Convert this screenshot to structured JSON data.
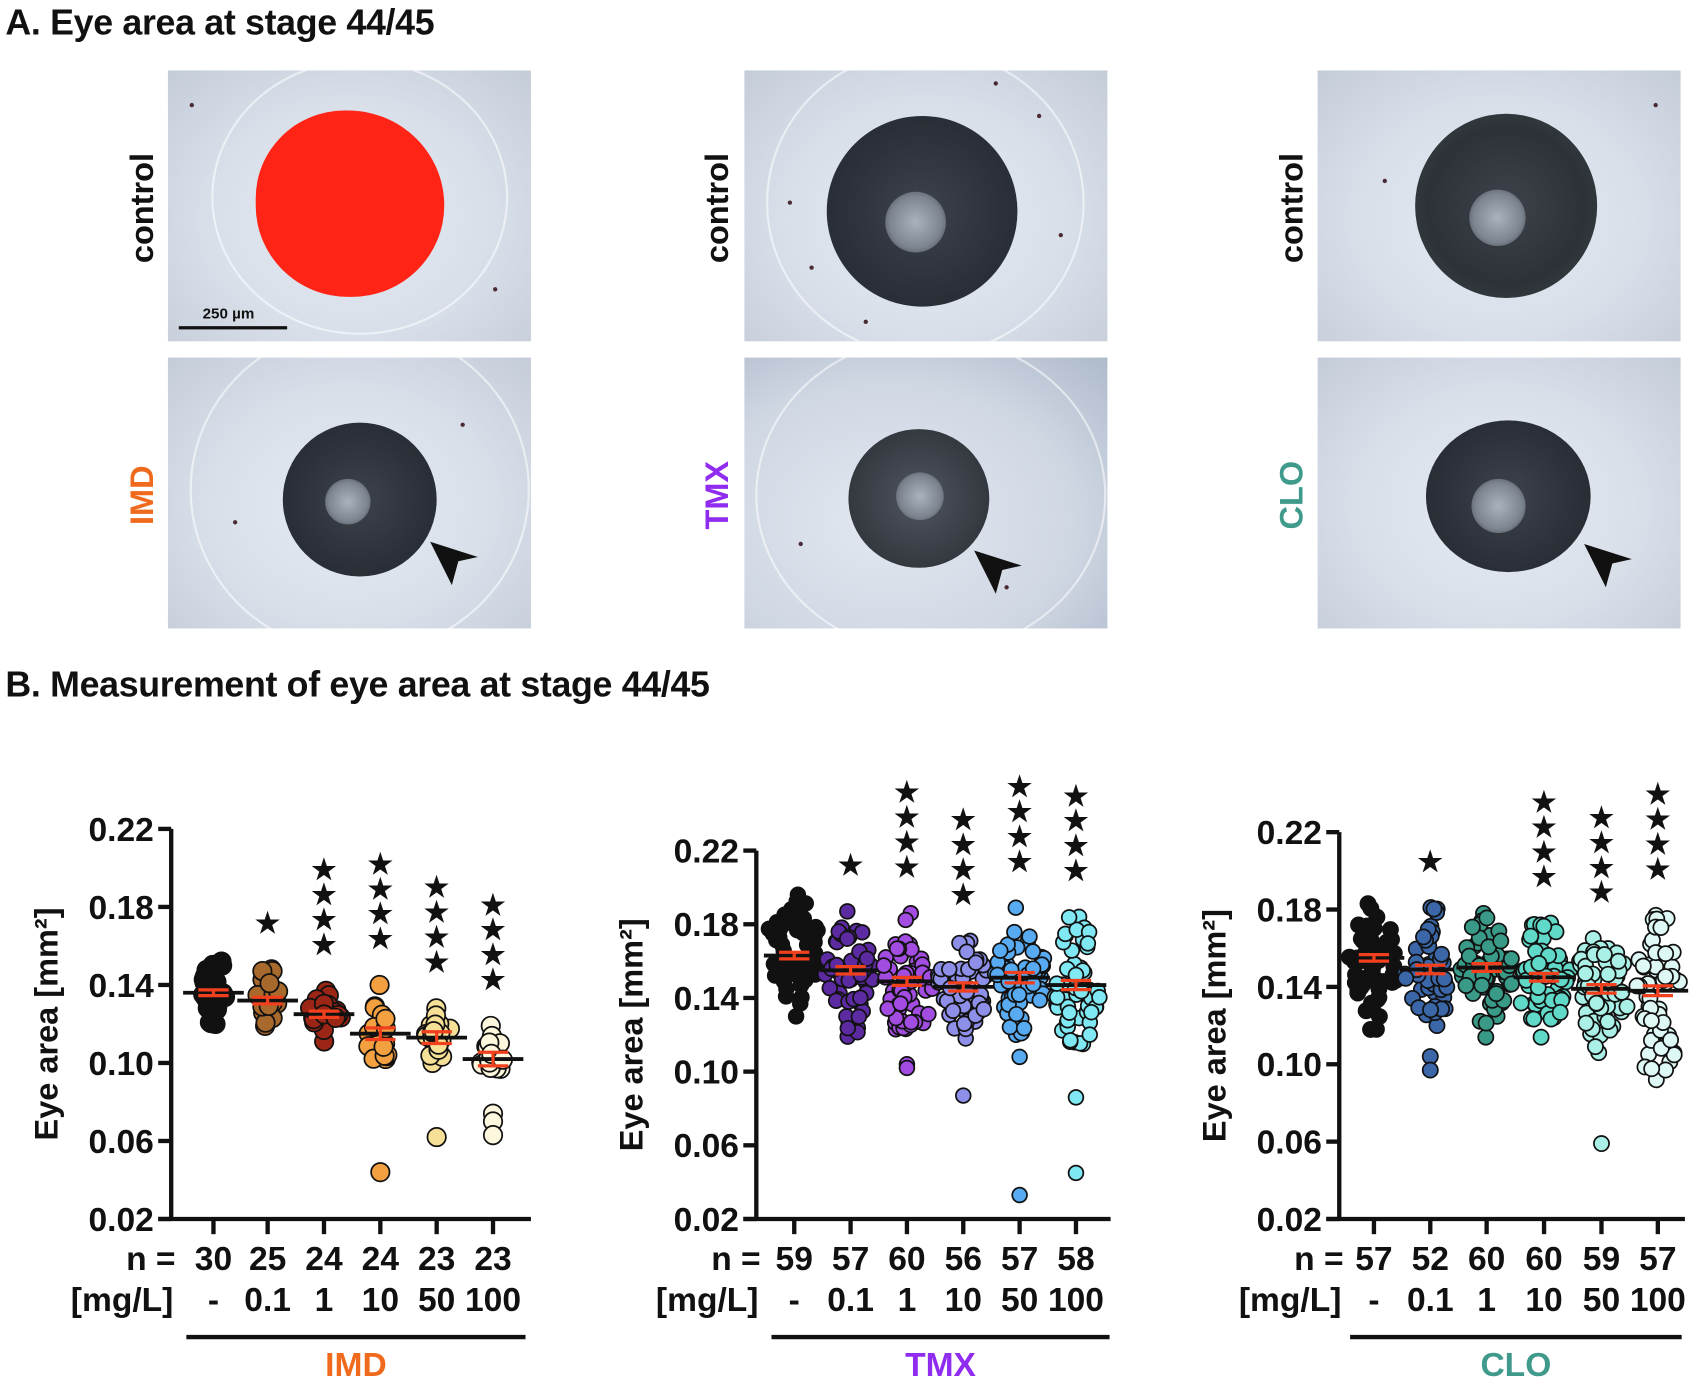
{
  "panel_a": {
    "title": "A. Eye area at stage 44/45",
    "scale_bar_label": "250 µm",
    "columns": [
      {
        "control_label": "control",
        "treatment_label": "IMD",
        "treatment_color": "#f06a1e"
      },
      {
        "control_label": "control",
        "treatment_label": "TMX",
        "treatment_color": "#8f2cf0"
      },
      {
        "control_label": "control",
        "treatment_label": "CLO",
        "treatment_color": "#3f9a8c"
      }
    ],
    "overlay_color": "#ff2416",
    "icons": [
      "arrowhead-icon"
    ]
  },
  "panel_b": {
    "title": "B. Measurement of eye area at stage 44/45"
  },
  "chart_data": [
    {
      "type": "scatter",
      "group_label": "IMD",
      "group_color": "#f06a1e",
      "ylabel": "Eye area [mm²]",
      "ylim": [
        0.02,
        0.22
      ],
      "yticks": [
        "0.02",
        "0.06",
        "0.10",
        "0.14",
        "0.18",
        "0.22"
      ],
      "n_label": "n =",
      "conc_label": "[mg/L]",
      "categories": [
        "-",
        "0.1",
        "1",
        "10",
        "50",
        "100"
      ],
      "n": [
        30,
        25,
        24,
        24,
        23,
        23
      ],
      "series": [
        {
          "color": "#111111",
          "mean": 0.136,
          "sem": 0.0015,
          "range": [
            0.12,
            0.152
          ],
          "outliers": [],
          "stars": 0
        },
        {
          "color": "#a8692c",
          "mean": 0.132,
          "sem": 0.0017,
          "range": [
            0.119,
            0.148
          ],
          "outliers": [],
          "stars": 1
        },
        {
          "color": "#9c2616",
          "mean": 0.125,
          "sem": 0.0016,
          "range": [
            0.111,
            0.137
          ],
          "outliers": [],
          "stars": 4
        },
        {
          "color": "#f2a040",
          "mean": 0.115,
          "sem": 0.003,
          "range": [
            0.102,
            0.14
          ],
          "outliers": [
            0.044
          ],
          "stars": 4
        },
        {
          "color": "#f6df96",
          "mean": 0.113,
          "sem": 0.003,
          "range": [
            0.1,
            0.128
          ],
          "outliers": [
            0.062
          ],
          "stars": 4
        },
        {
          "color": "#fdf7de",
          "mean": 0.102,
          "sem": 0.0035,
          "range": [
            0.097,
            0.119
          ],
          "outliers": [
            0.074,
            0.07,
            0.063
          ],
          "stars": 4
        }
      ]
    },
    {
      "type": "scatter",
      "group_label": "TMX",
      "group_color": "#8f2cf0",
      "ylabel": "Eye area [mm²]",
      "ylim": [
        0.02,
        0.22
      ],
      "yticks": [
        "0.02",
        "0.06",
        "0.10",
        "0.14",
        "0.18",
        "0.22"
      ],
      "n_label": "n =",
      "conc_label": "[mg/L]",
      "categories": [
        "-",
        "0.1",
        "1",
        "10",
        "50",
        "100"
      ],
      "n": [
        59,
        57,
        60,
        56,
        57,
        58
      ],
      "series": [
        {
          "color": "#111111",
          "mean": 0.163,
          "sem": 0.0018,
          "range": [
            0.13,
            0.196
          ],
          "outliers": [],
          "stars": 0
        },
        {
          "color": "#5c2ba2",
          "mean": 0.155,
          "sem": 0.002,
          "range": [
            0.119,
            0.187
          ],
          "outliers": [],
          "stars": 1
        },
        {
          "color": "#a24ce2",
          "mean": 0.149,
          "sem": 0.0022,
          "range": [
            0.123,
            0.186
          ],
          "outliers": [
            0.104,
            0.102
          ],
          "stars": 4
        },
        {
          "color": "#8e8fe8",
          "mean": 0.146,
          "sem": 0.0022,
          "range": [
            0.118,
            0.171
          ],
          "outliers": [
            0.087
          ],
          "stars": 4
        },
        {
          "color": "#58abf0",
          "mean": 0.151,
          "sem": 0.0028,
          "range": [
            0.12,
            0.189
          ],
          "outliers": [
            0.108,
            0.033
          ],
          "stars": 4
        },
        {
          "color": "#80e8f2",
          "mean": 0.147,
          "sem": 0.0025,
          "range": [
            0.115,
            0.184
          ],
          "outliers": [
            0.086,
            0.045
          ],
          "stars": 4
        }
      ]
    },
    {
      "type": "scatter",
      "group_label": "CLO",
      "group_color": "#3f9a8c",
      "ylabel": "Eye area [mm²]",
      "ylim": [
        0.02,
        0.22
      ],
      "yticks": [
        "0.02",
        "0.06",
        "0.10",
        "0.14",
        "0.18",
        "0.22"
      ],
      "n_label": "n =",
      "conc_label": "[mg/L]",
      "categories": [
        "-",
        "0.1",
        "1",
        "10",
        "50",
        "100"
      ],
      "n": [
        57,
        52,
        60,
        60,
        59,
        57
      ],
      "series": [
        {
          "color": "#111111",
          "mean": 0.155,
          "sem": 0.0017,
          "range": [
            0.118,
            0.183
          ],
          "outliers": [],
          "stars": 0
        },
        {
          "color": "#3b67a8",
          "mean": 0.149,
          "sem": 0.0022,
          "range": [
            0.12,
            0.181
          ],
          "outliers": [
            0.104,
            0.097
          ],
          "stars": 1
        },
        {
          "color": "#3a9a88",
          "mean": 0.15,
          "sem": 0.002,
          "range": [
            0.114,
            0.178
          ],
          "outliers": [],
          "stars": 0
        },
        {
          "color": "#60d9c8",
          "mean": 0.145,
          "sem": 0.002,
          "range": [
            0.114,
            0.173
          ],
          "outliers": [],
          "stars": 4
        },
        {
          "color": "#aaf0e6",
          "mean": 0.139,
          "sem": 0.0022,
          "range": [
            0.106,
            0.165
          ],
          "outliers": [
            0.059
          ],
          "stars": 4
        },
        {
          "color": "#def8f6",
          "mean": 0.138,
          "sem": 0.0025,
          "range": [
            0.092,
            0.177
          ],
          "outliers": [],
          "stars": 4
        }
      ]
    }
  ]
}
